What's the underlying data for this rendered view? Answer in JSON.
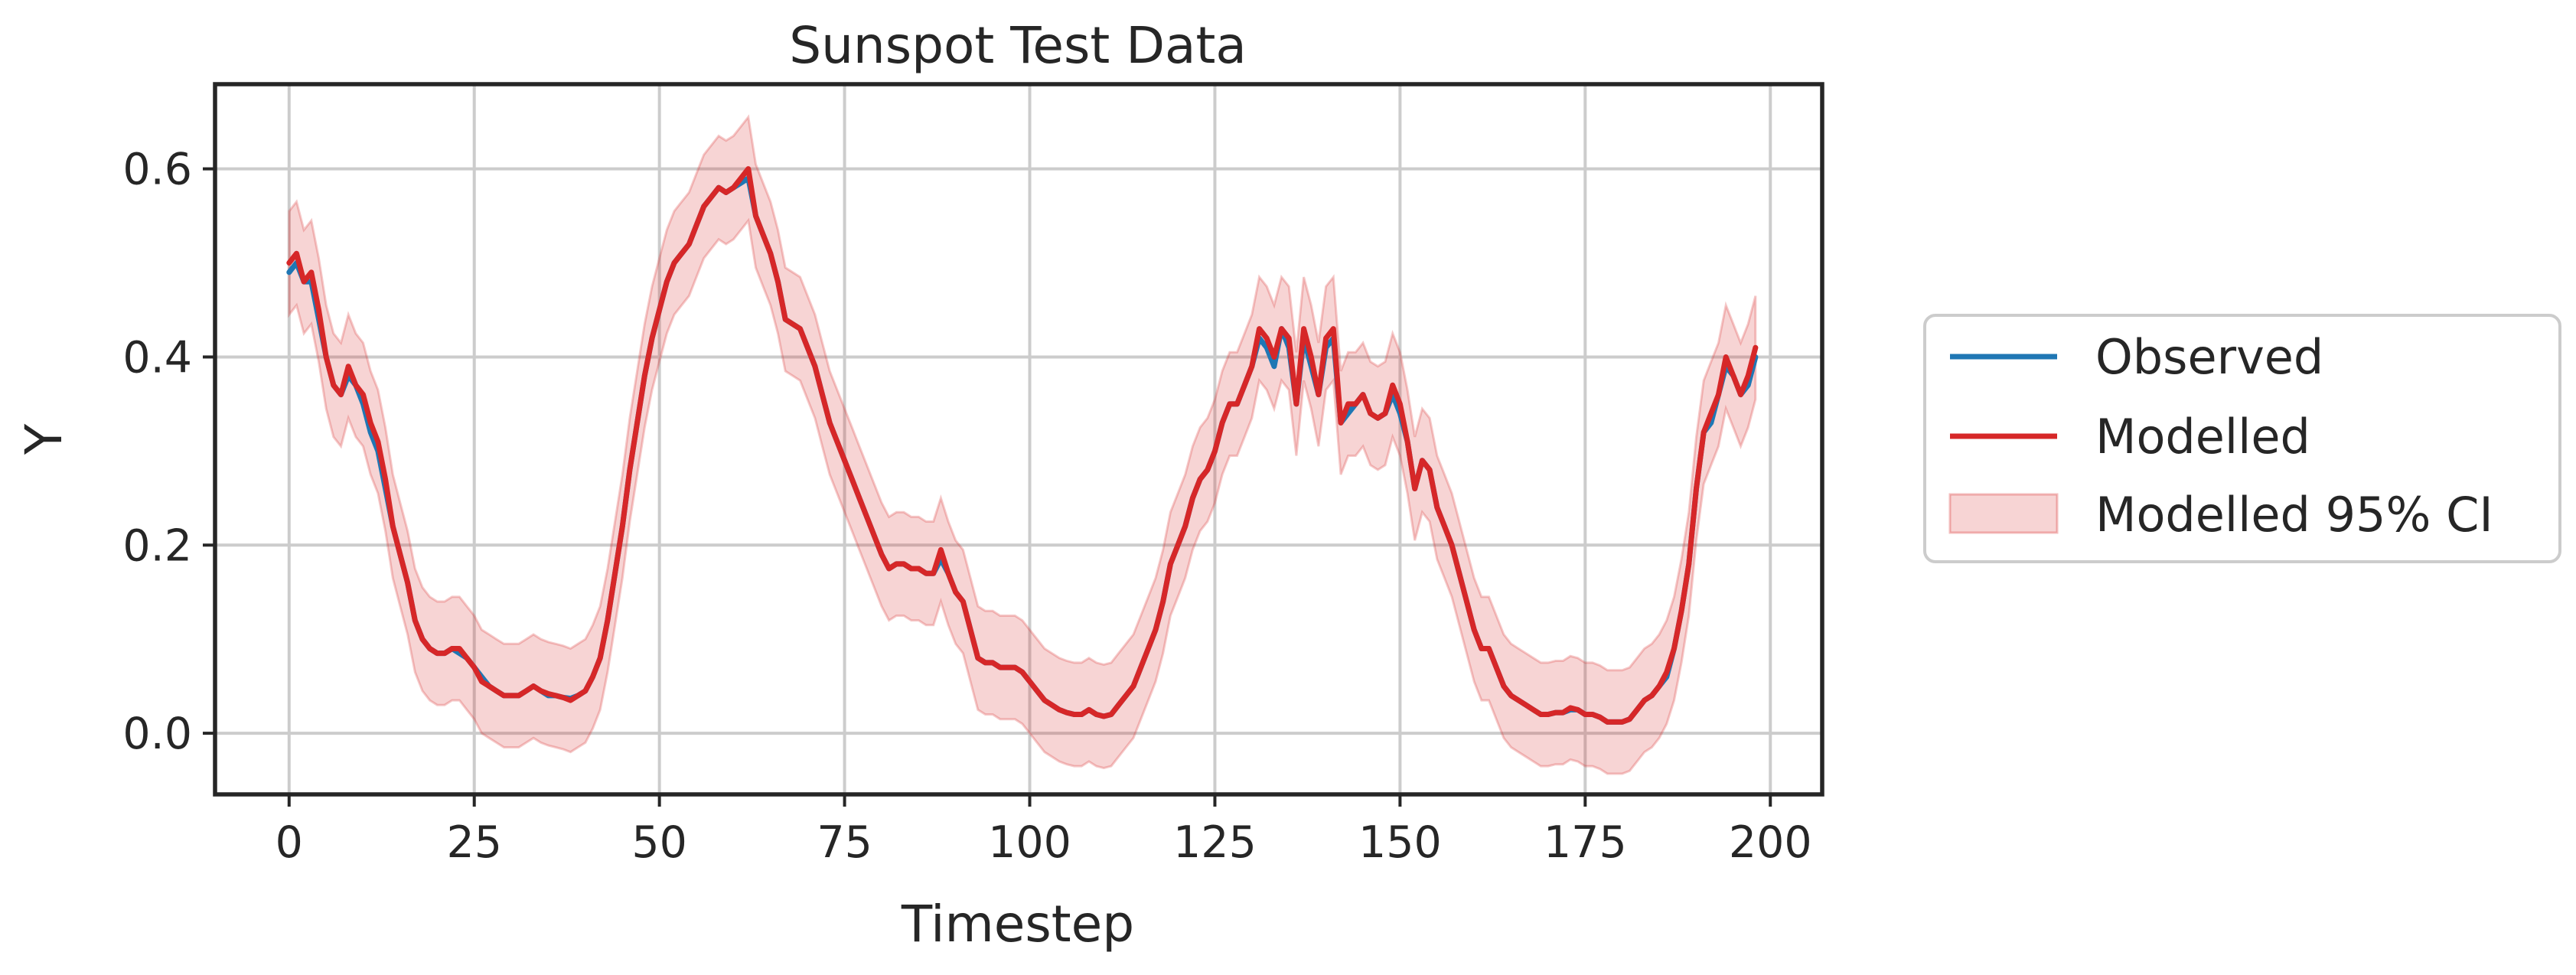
{
  "chart_data": {
    "type": "line",
    "title": "Sunspot Test Data",
    "xlabel": "Timestep",
    "ylabel": "Y",
    "xlim": [
      -10,
      207
    ],
    "ylim": [
      -0.065,
      0.69
    ],
    "xticks": [
      0,
      25,
      50,
      75,
      100,
      125,
      150,
      175,
      200
    ],
    "xtick_labels": [
      "0",
      "25",
      "50",
      "75",
      "100",
      "125",
      "150",
      "175",
      "200"
    ],
    "yticks": [
      0.0,
      0.2,
      0.4,
      0.6
    ],
    "ytick_labels": [
      "0.0",
      "0.2",
      "0.4",
      "0.6"
    ],
    "grid": true,
    "legend_position": "outside-right",
    "x_start": 0,
    "x_step": 1,
    "series": [
      {
        "name": "Observed",
        "color": "#1f77b4",
        "values": [
          0.49,
          0.5,
          0.48,
          0.48,
          0.44,
          0.4,
          0.37,
          0.36,
          0.38,
          0.37,
          0.35,
          0.32,
          0.3,
          0.26,
          0.22,
          0.19,
          0.16,
          0.12,
          0.1,
          0.09,
          0.085,
          0.085,
          0.09,
          0.085,
          0.08,
          0.07,
          0.06,
          0.05,
          0.045,
          0.04,
          0.04,
          0.04,
          0.045,
          0.05,
          0.045,
          0.04,
          0.04,
          0.038,
          0.037,
          0.04,
          0.045,
          0.06,
          0.08,
          0.12,
          0.17,
          0.22,
          0.28,
          0.33,
          0.38,
          0.42,
          0.45,
          0.48,
          0.5,
          0.51,
          0.52,
          0.54,
          0.56,
          0.57,
          0.58,
          0.575,
          0.58,
          0.585,
          0.59,
          0.55,
          0.53,
          0.51,
          0.48,
          0.44,
          0.435,
          0.43,
          0.41,
          0.39,
          0.36,
          0.33,
          0.31,
          0.29,
          0.27,
          0.25,
          0.23,
          0.21,
          0.19,
          0.175,
          0.18,
          0.18,
          0.175,
          0.175,
          0.17,
          0.17,
          0.185,
          0.17,
          0.15,
          0.14,
          0.11,
          0.08,
          0.075,
          0.075,
          0.07,
          0.07,
          0.07,
          0.065,
          0.055,
          0.045,
          0.035,
          0.03,
          0.025,
          0.022,
          0.02,
          0.02,
          0.025,
          0.02,
          0.018,
          0.02,
          0.03,
          0.04,
          0.05,
          0.07,
          0.09,
          0.11,
          0.14,
          0.18,
          0.2,
          0.22,
          0.25,
          0.27,
          0.28,
          0.3,
          0.33,
          0.35,
          0.35,
          0.37,
          0.39,
          0.42,
          0.41,
          0.39,
          0.43,
          0.41,
          0.35,
          0.42,
          0.39,
          0.36,
          0.41,
          0.42,
          0.33,
          0.34,
          0.35,
          0.36,
          0.34,
          0.335,
          0.34,
          0.36,
          0.34,
          0.31,
          0.26,
          0.29,
          0.28,
          0.24,
          0.22,
          0.2,
          0.17,
          0.14,
          0.11,
          0.09,
          0.09,
          0.07,
          0.05,
          0.04,
          0.035,
          0.03,
          0.025,
          0.02,
          0.02,
          0.022,
          0.022,
          0.025,
          0.025,
          0.02,
          0.02,
          0.017,
          0.012,
          0.012,
          0.012,
          0.015,
          0.025,
          0.035,
          0.04,
          0.05,
          0.06,
          0.09,
          0.13,
          0.18,
          0.26,
          0.32,
          0.33,
          0.36,
          0.39,
          0.38,
          0.36,
          0.37,
          0.4
        ]
      },
      {
        "name": "Modelled",
        "color": "#d62728",
        "values": [
          0.5,
          0.51,
          0.48,
          0.49,
          0.45,
          0.4,
          0.37,
          0.36,
          0.39,
          0.37,
          0.36,
          0.33,
          0.31,
          0.27,
          0.22,
          0.19,
          0.16,
          0.12,
          0.1,
          0.09,
          0.085,
          0.085,
          0.09,
          0.09,
          0.08,
          0.07,
          0.055,
          0.05,
          0.045,
          0.04,
          0.04,
          0.04,
          0.045,
          0.05,
          0.045,
          0.042,
          0.04,
          0.038,
          0.035,
          0.04,
          0.045,
          0.06,
          0.08,
          0.12,
          0.17,
          0.22,
          0.28,
          0.33,
          0.38,
          0.42,
          0.45,
          0.48,
          0.5,
          0.51,
          0.52,
          0.54,
          0.56,
          0.57,
          0.58,
          0.575,
          0.58,
          0.59,
          0.6,
          0.55,
          0.53,
          0.51,
          0.48,
          0.44,
          0.435,
          0.43,
          0.41,
          0.39,
          0.36,
          0.33,
          0.31,
          0.29,
          0.27,
          0.25,
          0.23,
          0.21,
          0.19,
          0.175,
          0.18,
          0.18,
          0.175,
          0.175,
          0.17,
          0.17,
          0.195,
          0.17,
          0.15,
          0.14,
          0.11,
          0.08,
          0.075,
          0.075,
          0.07,
          0.07,
          0.07,
          0.065,
          0.055,
          0.045,
          0.035,
          0.03,
          0.025,
          0.022,
          0.02,
          0.02,
          0.025,
          0.02,
          0.018,
          0.02,
          0.03,
          0.04,
          0.05,
          0.07,
          0.09,
          0.11,
          0.14,
          0.18,
          0.2,
          0.22,
          0.25,
          0.27,
          0.28,
          0.3,
          0.33,
          0.35,
          0.35,
          0.37,
          0.39,
          0.43,
          0.42,
          0.4,
          0.43,
          0.42,
          0.35,
          0.43,
          0.4,
          0.36,
          0.42,
          0.43,
          0.33,
          0.35,
          0.35,
          0.36,
          0.34,
          0.335,
          0.34,
          0.37,
          0.35,
          0.31,
          0.26,
          0.29,
          0.28,
          0.24,
          0.22,
          0.2,
          0.17,
          0.14,
          0.11,
          0.09,
          0.09,
          0.07,
          0.05,
          0.04,
          0.035,
          0.03,
          0.025,
          0.02,
          0.02,
          0.022,
          0.022,
          0.027,
          0.025,
          0.02,
          0.02,
          0.017,
          0.012,
          0.012,
          0.012,
          0.015,
          0.025,
          0.035,
          0.04,
          0.05,
          0.065,
          0.09,
          0.13,
          0.18,
          0.26,
          0.32,
          0.34,
          0.36,
          0.4,
          0.38,
          0.36,
          0.38,
          0.41
        ]
      },
      {
        "name": "Modelled 95% CI",
        "type": "band",
        "color": "#d62728",
        "fill_opacity": 0.2,
        "ci_halfwidth": 0.055
      }
    ]
  }
}
